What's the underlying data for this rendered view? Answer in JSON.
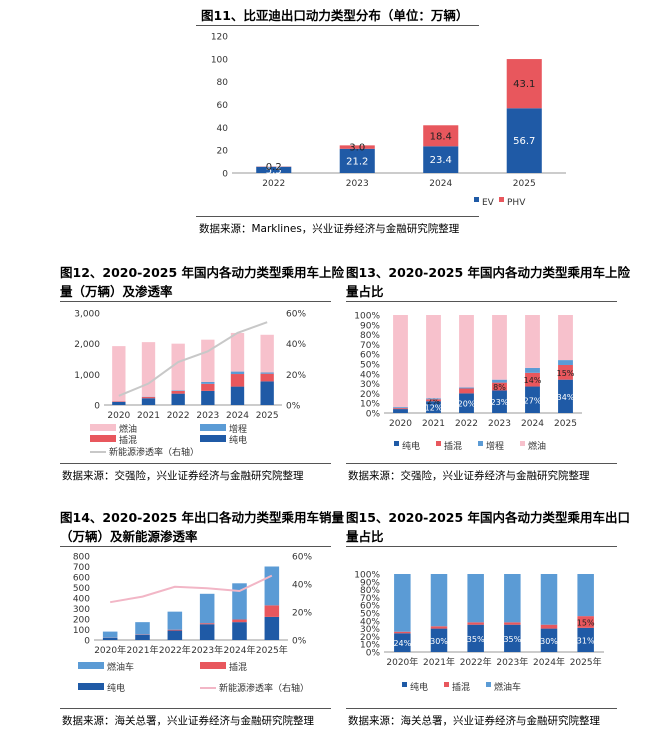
{
  "colors": {
    "ev": "#1f5aa6",
    "phv": "#e8575d",
    "ice": "#f7c1cc",
    "erev": "#5b9bd5",
    "ice_export": "#5b9bd5",
    "penetration": "#c8c8c8",
    "penetration_export": "#f2b6c6"
  },
  "fig11": {
    "title": "图11、比亚迪出口动力类型分布（单位：万辆）",
    "source": "数据来源：Marklines，兴业证券经济与金融研究院整理",
    "chart_data": {
      "type": "bar",
      "stacked": true,
      "categories": [
        "2022",
        "2023",
        "2024",
        "2025"
      ],
      "series": [
        {
          "name": "EV",
          "values": [
            5.5,
            21.2,
            23.4,
            56.7
          ]
        },
        {
          "name": "PHV",
          "values": [
            0.2,
            3.0,
            18.4,
            43.1
          ]
        }
      ],
      "data_labels": [
        [
          "5.5",
          "21.2",
          "23.4",
          "56.7"
        ],
        [
          "0.2",
          "3.0",
          "18.4",
          "43.1"
        ]
      ],
      "yticks": [
        "0",
        "20",
        "40",
        "60",
        "80",
        "100",
        "120"
      ],
      "ylim": [
        0,
        120
      ],
      "legend": [
        "EV",
        "PHV"
      ],
      "legend_position": "bottom-right"
    }
  },
  "fig12": {
    "title_line1": "图12、2020-2025 年国内各动力类型乘用车上险",
    "title_line2": "量（万辆）及渗透率",
    "source": "数据来源：交强险，兴业证券经济与金融研究院整理",
    "chart_data": {
      "type": "bar",
      "stacked": true,
      "categories": [
        "2020",
        "2021",
        "2022",
        "2023",
        "2024",
        "2025"
      ],
      "series": [
        {
          "name": "纯电",
          "values": [
            100,
            220,
            370,
            460,
            600,
            770
          ]
        },
        {
          "name": "插混",
          "values": [
            20,
            40,
            90,
            230,
            410,
            250
          ]
        },
        {
          "name": "增程",
          "values": [
            5,
            10,
            20,
            60,
            80,
            40
          ]
        },
        {
          "name": "燃油",
          "values": [
            1795,
            1780,
            1520,
            1380,
            1260,
            1230
          ]
        }
      ],
      "line": {
        "name": "新能源渗透率（右轴）",
        "values": [
          6,
          14,
          28,
          35,
          47,
          54
        ]
      },
      "yticks_left": [
        "0",
        "1,000",
        "2,000",
        "3,000"
      ],
      "ylim_left": [
        0,
        3000
      ],
      "yticks_right": [
        "0%",
        "20%",
        "40%",
        "60%"
      ],
      "ylim_right": [
        0,
        60
      ],
      "legend": [
        "燃油",
        "增程",
        "插混",
        "纯电",
        "新能源渗透率（右轴）"
      ],
      "legend_position": "bottom"
    }
  },
  "fig13": {
    "title_line1": "图13、2020-2025 年国内各动力类型乘用车上险",
    "title_line2": "量占比",
    "source": "数据来源：交强险，兴业证券经济与金融研究院整理",
    "chart_data": {
      "type": "bar",
      "stacked": true,
      "categories": [
        "2020",
        "2021",
        "2022",
        "2023",
        "2024",
        "2025"
      ],
      "series": [
        {
          "name": "纯电",
          "values": [
            4,
            12,
            20,
            23,
            27,
            34
          ]
        },
        {
          "name": "插混",
          "values": [
            1,
            2,
            5,
            8,
            14,
            15
          ]
        },
        {
          "name": "增程",
          "values": [
            1,
            1,
            1,
            3,
            5,
            5
          ]
        },
        {
          "name": "燃油",
          "values": [
            94,
            85,
            74,
            66,
            54,
            46
          ]
        }
      ],
      "data_labels": {
        "纯电": [
          "",
          "12%",
          "20%",
          "23%",
          "27%",
          "34%"
        ],
        "插混": [
          "",
          "2%",
          "",
          "8%",
          "14%",
          "15%"
        ]
      },
      "yticks": [
        "0%",
        "10%",
        "20%",
        "30%",
        "40%",
        "50%",
        "60%",
        "70%",
        "80%",
        "90%",
        "100%"
      ],
      "ylim": [
        0,
        100
      ],
      "legend": [
        "纯电",
        "插混",
        "增程",
        "燃油"
      ],
      "legend_position": "bottom"
    }
  },
  "fig14": {
    "title_line1": "图14、2020-2025 年出口各动力类型乘用车销量",
    "title_line2": "（万辆）及新能源渗透率",
    "source": "数据来源：海关总署，兴业证券经济与金融研究院整理",
    "chart_data": {
      "type": "bar",
      "stacked": true,
      "categories": [
        "2020年",
        "2021年",
        "2022年",
        "2023年",
        "2024年",
        "2025年"
      ],
      "series": [
        {
          "name": "纯电",
          "values": [
            20,
            50,
            90,
            150,
            170,
            220
          ]
        },
        {
          "name": "插混",
          "values": [
            2,
            3,
            8,
            10,
            25,
            110
          ]
        },
        {
          "name": "燃油车",
          "values": [
            58,
            117,
            172,
            280,
            345,
            370
          ]
        }
      ],
      "line": {
        "name": "新能源渗透率（右轴）",
        "values": [
          27,
          31,
          38,
          37,
          35,
          46
        ]
      },
      "yticks_left": [
        "0",
        "100",
        "200",
        "300",
        "400",
        "500",
        "600",
        "700",
        "800"
      ],
      "ylim_left": [
        0,
        800
      ],
      "yticks_right": [
        "0%",
        "20%",
        "40%",
        "60%"
      ],
      "ylim_right": [
        0,
        60
      ],
      "legend": [
        "燃油车",
        "插混",
        "纯电",
        "新能源渗透率（右轴）"
      ],
      "legend_position": "bottom"
    }
  },
  "fig15": {
    "title_line1": "图15、2020-2025 年国内各动力类型乘用车出口",
    "title_line2": "量占比",
    "source": "数据来源：海关总署，兴业证券经济与金融研究院整理",
    "chart_data": {
      "type": "bar",
      "stacked": true,
      "categories": [
        "2020年",
        "2021年",
        "2022年",
        "2023年",
        "2024年",
        "2025年"
      ],
      "series": [
        {
          "name": "纯电",
          "values": [
            24,
            30,
            35,
            35,
            30,
            31
          ]
        },
        {
          "name": "插混",
          "values": [
            2,
            3,
            3,
            3,
            5,
            15
          ]
        },
        {
          "name": "燃油车",
          "values": [
            74,
            67,
            62,
            62,
            65,
            54
          ]
        }
      ],
      "data_labels": {
        "纯电": [
          "24%",
          "30%",
          "35%",
          "35%",
          "30%",
          "31%"
        ],
        "插混": [
          "",
          "",
          "",
          "",
          "",
          "15%"
        ]
      },
      "yticks": [
        "0%",
        "10%",
        "20%",
        "30%",
        "40%",
        "50%",
        "60%",
        "70%",
        "80%",
        "90%",
        "100%"
      ],
      "ylim": [
        0,
        100
      ],
      "legend": [
        "纯电",
        "插混",
        "燃油车"
      ],
      "legend_position": "bottom"
    }
  }
}
